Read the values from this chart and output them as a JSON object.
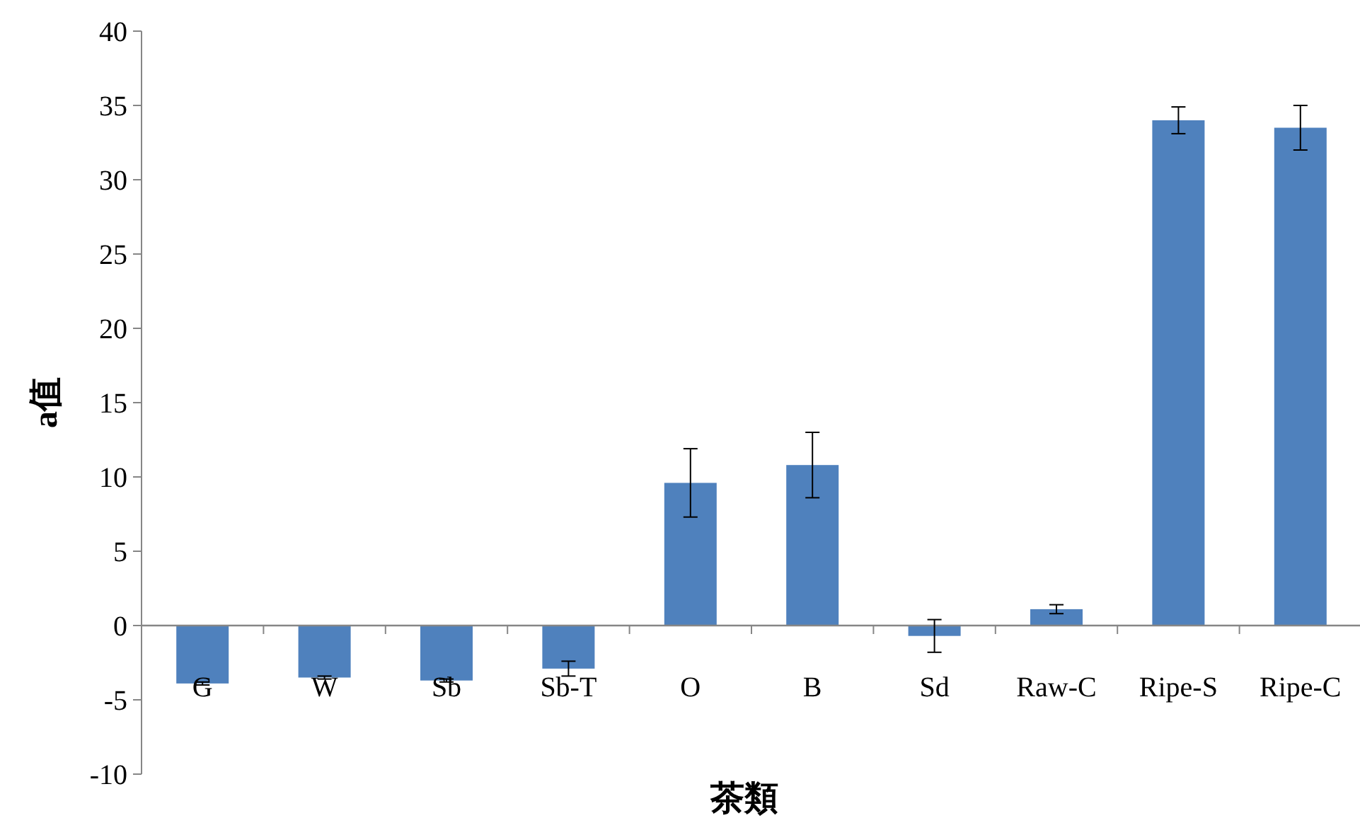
{
  "chart_data": {
    "type": "bar",
    "xlabel": "茶類",
    "ylabel": "a值",
    "categories": [
      "G",
      "W",
      "Sb",
      "Sb-T",
      "O",
      "B",
      "Sd",
      "Raw-C",
      "Ripe-S",
      "Ripe-C"
    ],
    "values": [
      -3.9,
      -3.5,
      -3.7,
      -2.9,
      9.6,
      10.8,
      -0.7,
      1.1,
      34.0,
      33.5
    ],
    "errors": [
      0.1,
      0.1,
      0.1,
      0.5,
      2.3,
      2.2,
      1.1,
      0.3,
      0.9,
      1.5
    ],
    "color": "#4f81bd",
    "ylim": [
      -10,
      40
    ],
    "yticks": [
      -10,
      -5,
      0,
      5,
      10,
      15,
      20,
      25,
      30,
      35,
      40
    ],
    "grid": false
  }
}
